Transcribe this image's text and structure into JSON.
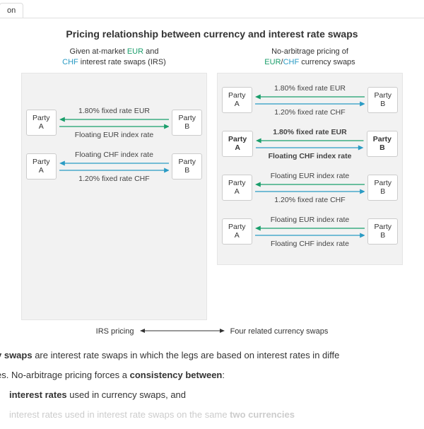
{
  "tab": {
    "label": "on"
  },
  "title": "Pricing relationship between currency and interest rate swaps",
  "left": {
    "header_a": "Given at-market ",
    "header_b": " and",
    "header_c": " interest rate swaps (IRS)",
    "eur": "EUR",
    "chf": "CHF",
    "swaps": [
      {
        "top_label": "1.80% fixed rate EUR",
        "bottom_label": "Floating EUR index rate",
        "top_color": "#1a9e6b",
        "bottom_color": "#1a9e6b",
        "bold": false
      },
      {
        "top_label": "Floating CHF index rate",
        "bottom_label": "1.20% fixed rate CHF",
        "top_color": "#2a9bc4",
        "bottom_color": "#2a9bc4",
        "bold": false
      }
    ]
  },
  "right": {
    "header_a": "No-arbitrage pricing of",
    "header_b": " currency swaps",
    "eur": "EUR",
    "chf": "CHF",
    "swaps": [
      {
        "top_label": "1.80% fixed rate EUR",
        "bottom_label": "1.20% fixed rate CHF",
        "top_color": "#1a9e6b",
        "bottom_color": "#2a9bc4",
        "bold": false
      },
      {
        "top_label": "1.80% fixed rate EUR",
        "bottom_label": "Floating CHF index rate",
        "top_color": "#1a9e6b",
        "bottom_color": "#2a9bc4",
        "bold": true
      },
      {
        "top_label": "Floating EUR index rate",
        "bottom_label": "1.20% fixed rate CHF",
        "top_color": "#1a9e6b",
        "bottom_color": "#2a9bc4",
        "bold": false
      },
      {
        "top_label": "Floating EUR index rate",
        "bottom_label": "Floating CHF index rate",
        "top_color": "#1a9e6b",
        "bottom_color": "#2a9bc4",
        "bold": false
      }
    ]
  },
  "party_a": "Party A",
  "party_b": "Party B",
  "caption_left": "IRS pricing",
  "caption_right": "Four related currency swaps",
  "body": {
    "line1_a": "y swaps",
    "line1_b": " are interest rate swaps in which the legs are based on interest rates in diffe",
    "line2": "es. No-arbitrage pricing forces a ",
    "line2_b": "consistency between",
    "line2_c": ":",
    "bullet1_a": "interest rates",
    "bullet1_b": " used in currency swaps, and",
    "bullet2_a": "interest rates used in interest rate swaps on the same ",
    "bullet2_b": "two currencies"
  },
  "colors": {
    "arrow_head": 6,
    "black_arrow": "#333333"
  }
}
